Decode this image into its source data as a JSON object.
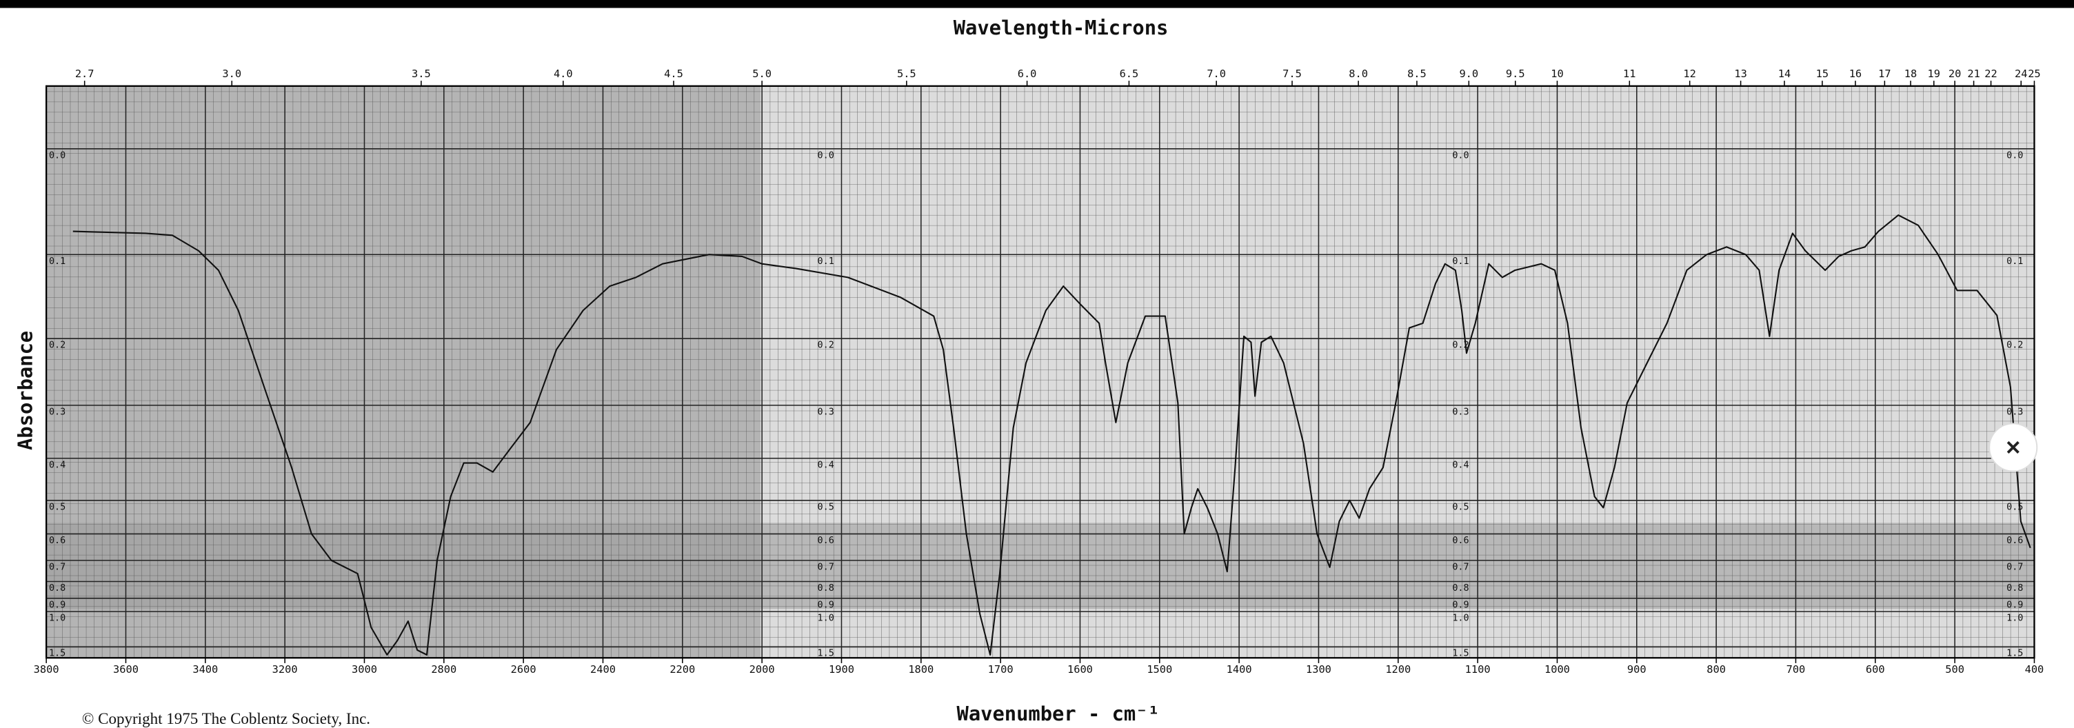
{
  "chart_data": {
    "type": "line",
    "title": "Wavelength-Microns",
    "xlabel": "Wavenumber - cm⁻¹",
    "ylabel": "Absorbance",
    "copyright": "© Copyright 1975  The Coblentz Society, Inc.",
    "color": "#111111",
    "grid": true,
    "xlim": [
      3800,
      400
    ],
    "xticks": [
      3800,
      3600,
      3400,
      3200,
      3000,
      2800,
      2600,
      2400,
      2200,
      2000,
      1900,
      1800,
      1700,
      1600,
      1500,
      1400,
      1300,
      1200,
      1100,
      1000,
      900,
      800,
      700,
      600,
      500,
      400
    ],
    "x2ticks": [
      2.7,
      {
        "value": 3,
        "label": "3.0"
      },
      3.5,
      {
        "value": 4,
        "label": "4.0"
      },
      4.5,
      {
        "value": 5,
        "label": "5.0"
      },
      5.5,
      {
        "value": 6,
        "label": "6.0"
      },
      6.5,
      {
        "value": 7,
        "label": "7.0"
      },
      7.5,
      {
        "value": 8,
        "label": "8.0"
      },
      8.5,
      {
        "value": 9,
        "label": "9.0"
      },
      9.5,
      10,
      11,
      12,
      13,
      14,
      15,
      16,
      17,
      18,
      19,
      20,
      21,
      22,
      24,
      25
    ],
    "ylim": [
      -0.05,
      2
    ],
    "yticks": [
      {
        "value": 0,
        "label": "0.0"
      },
      0.1,
      0.2,
      0.3,
      0.4,
      0.5,
      0.6,
      0.7,
      0.8,
      0.9,
      {
        "value": 1,
        "label": "1.0"
      },
      1.5
    ],
    "x": [
      3733,
      3550,
      3483,
      3417,
      3367,
      3317,
      3250,
      3183,
      3133,
      3083,
      3017,
      2983,
      2943,
      2917,
      2890,
      2867,
      2843,
      2817,
      2783,
      2750,
      2717,
      2677,
      2633,
      2583,
      2517,
      2450,
      2383,
      2317,
      2250,
      2133,
      2050,
      2000,
      1958,
      1892,
      1826,
      1784,
      1772,
      1759,
      1743,
      1726,
      1713,
      1701,
      1684,
      1668,
      1643,
      1621,
      1601,
      1576,
      1568,
      1555,
      1540,
      1518,
      1493,
      1477,
      1469,
      1460,
      1452,
      1440,
      1427,
      1415,
      1405,
      1394,
      1385,
      1380,
      1372,
      1360,
      1344,
      1319,
      1302,
      1286,
      1274,
      1261,
      1249,
      1236,
      1219,
      1203,
      1186,
      1169,
      1153,
      1141,
      1128,
      1120,
      1114,
      1103,
      1086,
      1069,
      1053,
      1020,
      1003,
      987,
      970,
      953,
      942,
      928,
      912,
      887,
      862,
      837,
      812,
      787,
      763,
      746,
      733,
      721,
      704,
      688,
      663,
      646,
      630,
      613,
      596,
      571,
      546,
      521,
      497,
      472,
      447,
      430,
      417,
      405
    ],
    "values": [
      0.076,
      0.078,
      0.08,
      0.096,
      0.117,
      0.164,
      0.274,
      0.42,
      0.6,
      0.7,
      0.76,
      1.16,
      1.8,
      1.36,
      1.09,
      1.6,
      1.8,
      0.7,
      0.49,
      0.41,
      0.41,
      0.43,
      0.38,
      0.33,
      0.215,
      0.164,
      0.135,
      0.125,
      0.11,
      0.1,
      0.102,
      0.11,
      0.115,
      0.125,
      0.148,
      0.171,
      0.215,
      0.34,
      0.6,
      1.02,
      1.8,
      0.76,
      0.34,
      0.234,
      0.164,
      0.135,
      0.155,
      0.18,
      0.234,
      0.33,
      0.234,
      0.171,
      0.171,
      0.296,
      0.6,
      0.52,
      0.47,
      0.52,
      0.6,
      0.75,
      0.42,
      0.197,
      0.205,
      0.285,
      0.205,
      0.197,
      0.234,
      0.37,
      0.6,
      0.73,
      0.56,
      0.5,
      0.55,
      0.47,
      0.42,
      0.296,
      0.186,
      0.18,
      0.132,
      0.11,
      0.117,
      0.164,
      0.22,
      0.18,
      0.11,
      0.125,
      0.117,
      0.11,
      0.117,
      0.18,
      0.34,
      0.49,
      0.52,
      0.42,
      0.296,
      0.234,
      0.18,
      0.117,
      0.1,
      0.092,
      0.1,
      0.117,
      0.197,
      0.117,
      0.078,
      0.096,
      0.117,
      0.102,
      0.096,
      0.092,
      0.076,
      0.06,
      0.07,
      0.1,
      0.14,
      0.14,
      0.17,
      0.27,
      0.56,
      0.65
    ]
  }
}
